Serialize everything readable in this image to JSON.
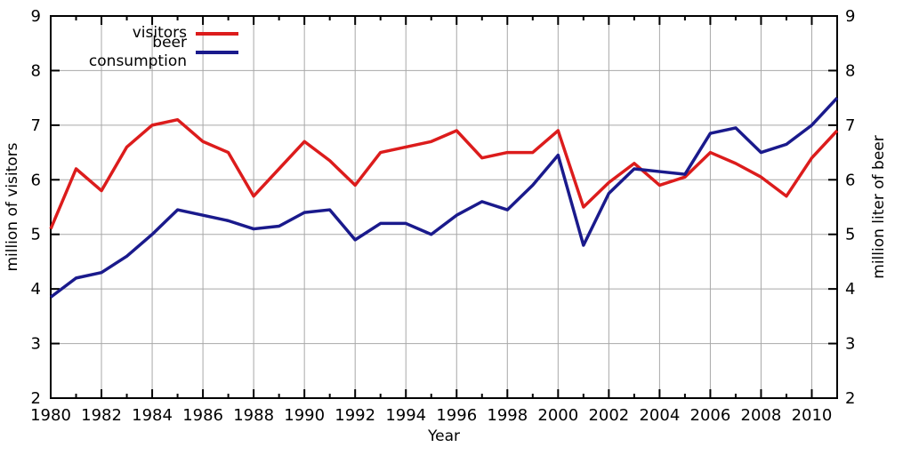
{
  "chart_data": {
    "type": "line",
    "title": "",
    "xlabel": "Year",
    "ylabel_left": "million of visitors",
    "ylabel_right": "million liter of beer",
    "xlim": [
      1980,
      2011
    ],
    "ylim": [
      2,
      9
    ],
    "yticks": [
      2,
      3,
      4,
      5,
      6,
      7,
      8,
      9
    ],
    "xticks": [
      1980,
      1982,
      1984,
      1986,
      1988,
      1990,
      1992,
      1994,
      1996,
      1998,
      2000,
      2002,
      2004,
      2006,
      2008,
      2010
    ],
    "xminorticks": [
      1981,
      1983,
      1985,
      1987,
      1989,
      1991,
      1993,
      1995,
      1997,
      1999,
      2001,
      2003,
      2005,
      2007,
      2009,
      2011
    ],
    "grid": true,
    "legend_position": "top-left-inside",
    "x": [
      1980,
      1981,
      1982,
      1983,
      1984,
      1985,
      1986,
      1987,
      1988,
      1989,
      1990,
      1991,
      1992,
      1993,
      1994,
      1995,
      1996,
      1997,
      1998,
      1999,
      2000,
      2001,
      2002,
      2003,
      2004,
      2005,
      2006,
      2007,
      2008,
      2009,
      2010,
      2011
    ],
    "series": [
      {
        "name": "visitors",
        "axis": "left",
        "color": "#dc1c1c",
        "values": [
          5.1,
          6.2,
          5.8,
          6.6,
          7.0,
          7.1,
          6.7,
          6.5,
          5.7,
          6.2,
          6.7,
          6.35,
          5.9,
          6.5,
          6.6,
          6.7,
          6.9,
          6.4,
          6.5,
          6.5,
          6.9,
          5.5,
          5.95,
          6.3,
          5.9,
          6.05,
          6.5,
          6.3,
          6.05,
          5.7,
          6.4,
          6.9
        ]
      },
      {
        "name": "beer consumption",
        "axis": "right",
        "color": "#1a1a8c",
        "values": [
          3.85,
          4.2,
          4.3,
          4.6,
          5.0,
          5.45,
          5.35,
          5.25,
          5.1,
          5.15,
          5.4,
          5.45,
          4.9,
          5.2,
          5.2,
          5.0,
          5.35,
          5.6,
          5.45,
          5.9,
          6.45,
          4.8,
          5.75,
          6.2,
          6.15,
          6.1,
          6.85,
          6.95,
          6.5,
          6.65,
          7.0,
          7.5
        ]
      }
    ],
    "colors": {
      "grid": "#a8a8a8",
      "axis": "#000000",
      "background": "#ffffff",
      "text": "#000000"
    }
  }
}
